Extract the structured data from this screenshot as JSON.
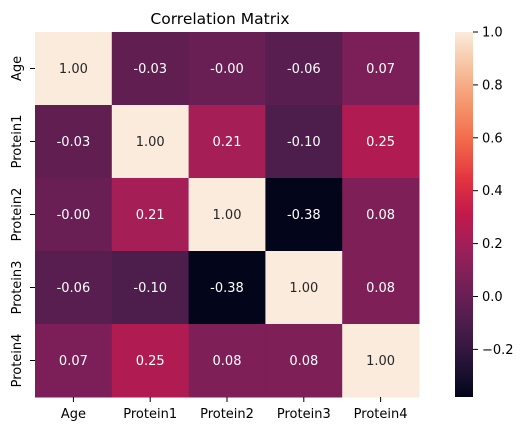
{
  "chart_data": {
    "type": "heatmap",
    "title": "Correlation Matrix",
    "xlabel": "",
    "ylabel": "",
    "x_categories": [
      "Age",
      "Protein1",
      "Protein2",
      "Protein3",
      "Protein4"
    ],
    "y_categories": [
      "Age",
      "Protein1",
      "Protein2",
      "Protein3",
      "Protein4"
    ],
    "values": [
      [
        1.0,
        -0.03,
        -0.0,
        -0.06,
        0.07
      ],
      [
        -0.03,
        1.0,
        0.21,
        -0.1,
        0.25
      ],
      [
        -0.0,
        0.21,
        1.0,
        -0.38,
        0.08
      ],
      [
        -0.06,
        -0.1,
        -0.38,
        1.0,
        0.08
      ],
      [
        0.07,
        0.25,
        0.08,
        0.08,
        1.0
      ]
    ],
    "annotations": [
      [
        "1.00",
        "-0.03",
        "-0.00",
        "-0.06",
        "0.07"
      ],
      [
        "-0.03",
        "1.00",
        "0.21",
        "-0.10",
        "0.25"
      ],
      [
        "-0.00",
        "0.21",
        "1.00",
        "-0.38",
        "0.08"
      ],
      [
        "-0.06",
        "-0.10",
        "-0.38",
        "1.00",
        "0.08"
      ],
      [
        "0.07",
        "0.25",
        "0.08",
        "0.08",
        "1.00"
      ]
    ],
    "colorbar": {
      "range": [
        -0.38,
        1.0
      ],
      "ticks": [
        -0.2,
        0.0,
        0.2,
        0.4,
        0.6,
        0.8,
        1.0
      ],
      "tick_labels": [
        "−0.2",
        "0.0",
        "0.2",
        "0.4",
        "0.6",
        "0.8",
        "1.0"
      ],
      "colormap": "rocket"
    },
    "grid": false
  }
}
